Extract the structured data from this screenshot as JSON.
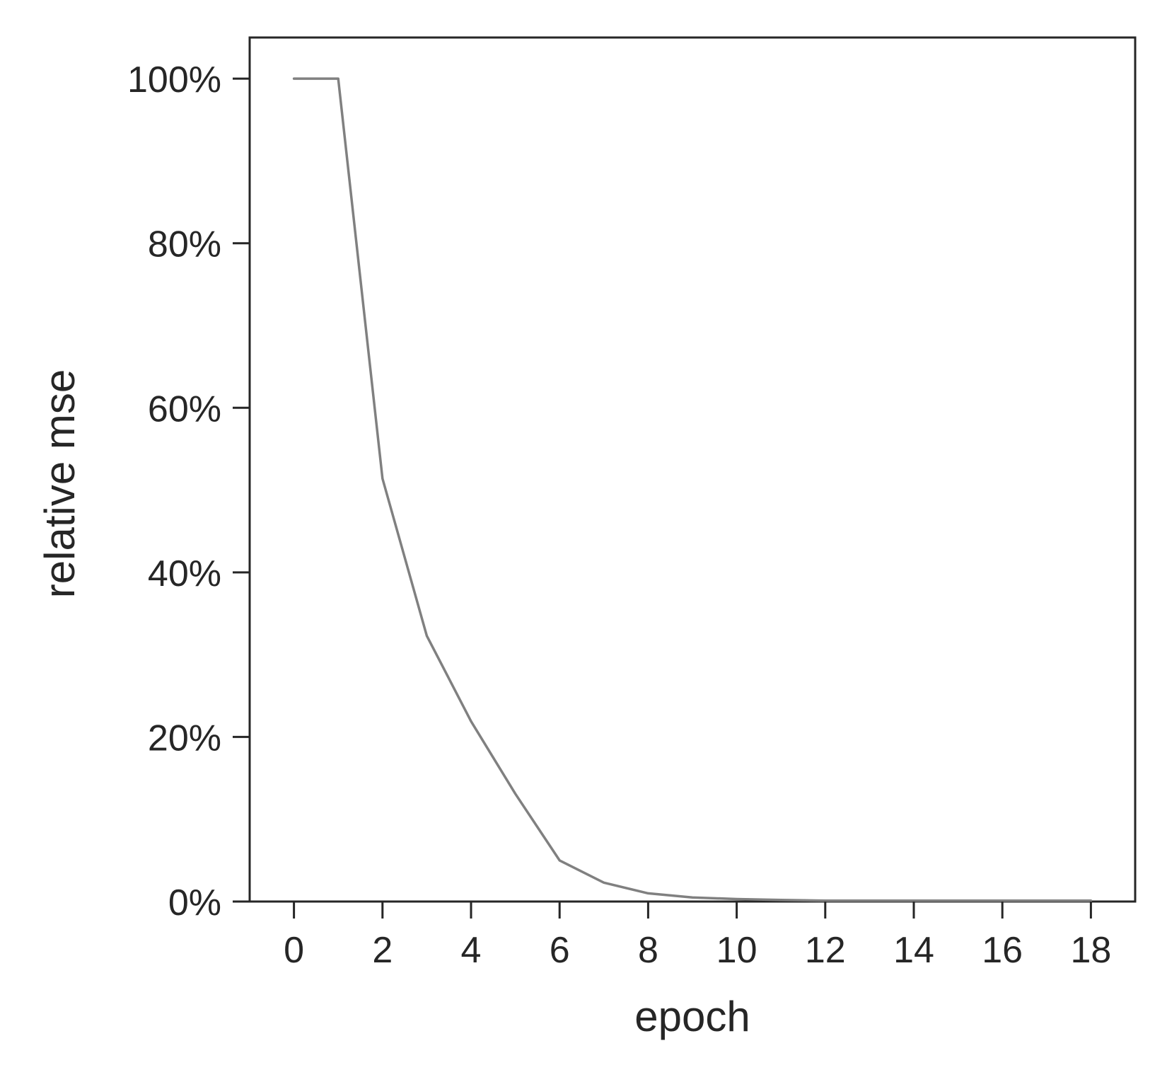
{
  "chart_data": {
    "type": "line",
    "xlabel": "epoch",
    "ylabel": "relative mse",
    "xlim": [
      -1,
      19
    ],
    "ylim": [
      0,
      1.05
    ],
    "x_ticks": [
      0,
      2,
      4,
      6,
      8,
      10,
      12,
      14,
      16,
      18
    ],
    "x_tick_labels": [
      "0",
      "2",
      "4",
      "6",
      "8",
      "10",
      "12",
      "14",
      "16",
      "18"
    ],
    "y_ticks": [
      0,
      0.2,
      0.4,
      0.6,
      0.8,
      1.0
    ],
    "y_tick_labels": [
      "0%",
      "20%",
      "40%",
      "60%",
      "80%",
      "100%"
    ],
    "grid": false,
    "series": [
      {
        "x": [
          0,
          1,
          2,
          3,
          4,
          5,
          6,
          7,
          8,
          9,
          10,
          11,
          12,
          13,
          14,
          15,
          16,
          17,
          18
        ],
        "values": [
          1.0,
          1.0,
          0.514,
          0.323,
          0.219,
          0.131,
          0.05,
          0.023,
          0.01,
          0.005,
          0.003,
          0.002,
          0.001,
          0.001,
          0.001,
          0.001,
          0.001,
          0.001,
          0.001
        ],
        "color": "#808080"
      }
    ]
  }
}
